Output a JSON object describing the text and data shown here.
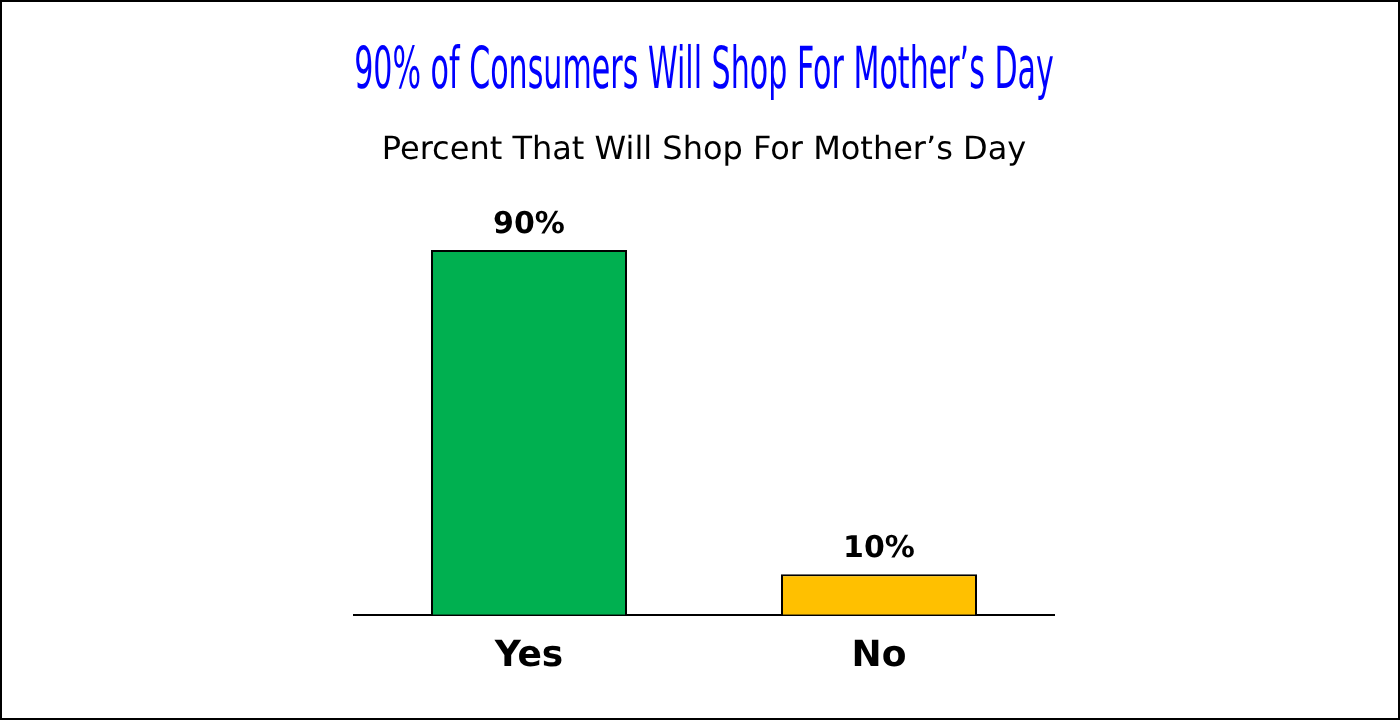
{
  "chart_data": {
    "type": "bar",
    "title": "90% of Consumers Will Shop For Mother’s Day",
    "subtitle": "Percent That Will Shop For Mother’s Day",
    "categories": [
      "Yes",
      "No"
    ],
    "values": [
      90,
      10
    ],
    "colors": [
      "#00b050",
      "#ffc000"
    ],
    "value_labels": [
      "90%",
      "10%"
    ],
    "legend": false,
    "grid": false
  }
}
